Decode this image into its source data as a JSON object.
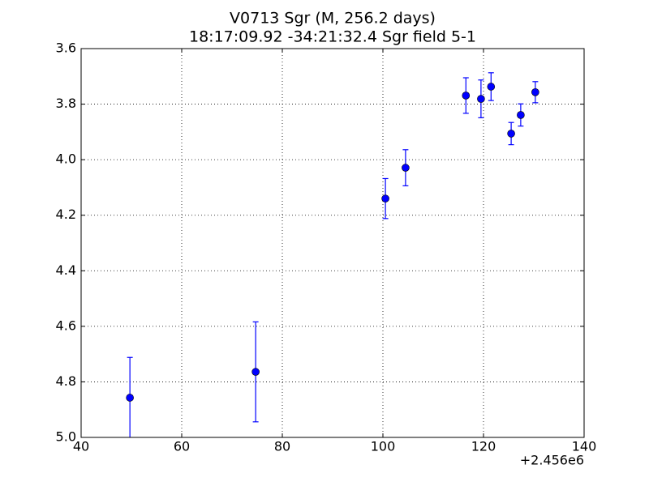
{
  "chart_data": {
    "type": "scatter",
    "title": "V0713 Sgr  (M, 256.2 days)",
    "subtitle": "18:17:09.92 -34:21:32.4 Sgr field 5-1",
    "x_offset_label": "+2.456e6",
    "x": [
      49.7,
      74.7,
      100.5,
      104.5,
      116.5,
      119.5,
      121.5,
      125.5,
      127.4,
      130.3
    ],
    "series": [
      {
        "color": "#0000ff",
        "values": [
          4.857,
          4.764,
          4.14,
          4.029,
          3.769,
          3.781,
          3.737,
          3.906,
          3.839,
          3.757
        ],
        "errors": [
          0.145,
          0.18,
          0.072,
          0.065,
          0.064,
          0.068,
          0.05,
          0.04,
          0.04,
          0.038
        ]
      }
    ],
    "xlim": [
      40,
      140
    ],
    "xticks": [
      40,
      60,
      80,
      100,
      120,
      140
    ],
    "ylim": [
      5.0,
      3.6
    ],
    "yticks": [
      3.6,
      3.8,
      {
        "value": 4,
        "label": "4.0"
      },
      4.2,
      4.4,
      4.6,
      4.8,
      {
        "value": 5,
        "label": "5.0"
      }
    ],
    "grid": true
  }
}
